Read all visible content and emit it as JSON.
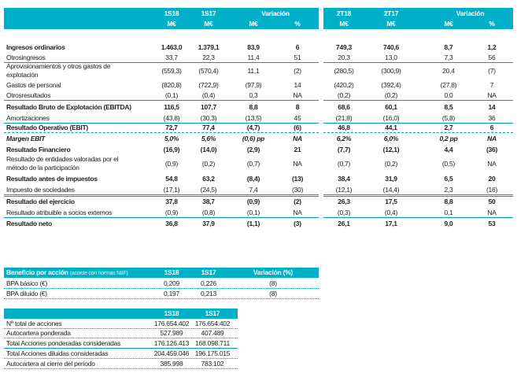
{
  "main_table": {
    "headers": {
      "left_periods": [
        "1S18",
        "1S17"
      ],
      "right_periods": [
        "2T18",
        "2T17"
      ],
      "variation": "Variación",
      "unit": "M€",
      "pct": "%"
    },
    "rows": [
      {
        "label": "Ingresos ordinarios",
        "bold": true,
        "values": [
          "1.463,0",
          "1.379,1",
          "83,9",
          "6",
          "749,3",
          "740,6",
          "8,7",
          "1,2"
        ]
      },
      {
        "label": "Otrosingresos",
        "values": [
          "33,7",
          "22,3",
          "11,4",
          "51",
          "20,3",
          "13,0",
          "7,3",
          "56"
        ],
        "line": "solid"
      },
      {
        "label": "Aprovisionamientos y otros gastos de explotación",
        "tall": true,
        "values": [
          "(559,3)",
          "(570,4)",
          "11,1",
          "(2)",
          "(280,5)",
          "(300,9)",
          "20,4",
          "(7)"
        ]
      },
      {
        "label": "Gastos de personal",
        "values": [
          "(820,8)",
          "(722,9)",
          "(97,9)",
          "14",
          "(420,2)",
          "(392,4)",
          "(27,8)",
          "7"
        ]
      },
      {
        "label": "Otrosresultados",
        "values": [
          "(0,1)",
          "(0,4)",
          "0,3",
          "NA",
          "(0,2)",
          "(0,2)",
          "0,0",
          "NA"
        ],
        "line": "solid"
      },
      {
        "label": "Resultado Bruto de Explotación (EBITDA)",
        "bold": true,
        "values": [
          "116,5",
          "107,7",
          "8,8",
          "8",
          "68,6",
          "60,1",
          "8,5",
          "14"
        ]
      },
      {
        "label": "Amortizaciones",
        "values": [
          "(43,8)",
          "(30,3)",
          "(13,5)",
          "45",
          "(21,8)",
          "(16,0)",
          "(5,8)",
          "36"
        ],
        "line": "solid"
      },
      {
        "label": "Resultado Operativo (EBIT)",
        "bold": true,
        "values": [
          "72,7",
          "77,4",
          "(4,7)",
          "(6)",
          "46,8",
          "44,1",
          "2,7",
          "6"
        ],
        "line": "dash"
      },
      {
        "label": "Margen EBIT",
        "bold": true,
        "italic": true,
        "values": [
          "5,0%",
          "5,6%",
          "(0,6) pp",
          "NA",
          "6,2%",
          "6,0%",
          "0,2 pp",
          "NA"
        ]
      },
      {
        "label": "Resultado Financiero",
        "bold": true,
        "values": [
          "(16,9)",
          "(14,0)",
          "(2,9)",
          "21",
          "(7,7)",
          "(12,1)",
          "4,4",
          "(36)"
        ]
      },
      {
        "label": "Resultado de entidades valoradas por el método de la participación",
        "tall": true,
        "values": [
          "(0,9)",
          "(0,2)",
          "(0,7)",
          "NA",
          "(0,7)",
          "(0,2)",
          "(0,5)",
          "NA"
        ]
      },
      {
        "label": "Resultado antes de impuestos",
        "bold": true,
        "values": [
          "54,8",
          "63,2",
          "(8,4)",
          "(13)",
          "38,4",
          "31,9",
          "6,5",
          "20"
        ]
      },
      {
        "label": "Impuesto de sociedades",
        "values": [
          "(17,1)",
          "(24,5)",
          "7,4",
          "(30)",
          "(12,1)",
          "(14,4)",
          "2,3",
          "(16)"
        ],
        "line": "dbl"
      },
      {
        "label": "Resultado del ejercicio",
        "bold": true,
        "values": [
          "37,8",
          "38,7",
          "(0,9)",
          "(2)",
          "26,3",
          "17,5",
          "8,8",
          "50"
        ]
      },
      {
        "label": "Resultado atribuible a socios externos",
        "values": [
          "(0,9)",
          "(0,8)",
          "(0,1)",
          "NA",
          "(0,3)",
          "(0,4)",
          "0,1",
          "NA"
        ],
        "line": "solid"
      },
      {
        "label": "Resultado neto",
        "bold": true,
        "values": [
          "36,8",
          "37,9",
          "(1,1)",
          "(3)",
          "26,1",
          "17,1",
          "9,0",
          "53"
        ]
      }
    ]
  },
  "eps_table": {
    "title": "Beneficio por acción",
    "subtitle": "(acorde con normas NIIF)",
    "headers": [
      "1S18",
      "1S17",
      "Variación (%)"
    ],
    "rows": [
      {
        "label": "BPA básico (€)",
        "values": [
          "0,209",
          "0,226",
          "(8)"
        ]
      },
      {
        "label": "BPA diluido (€)",
        "values": [
          "0,197",
          "0,213",
          "(8)"
        ]
      }
    ]
  },
  "shares_table": {
    "headers": [
      "1S18",
      "1S17"
    ],
    "rows": [
      {
        "label": "Nº total de acciones",
        "values": [
          "176.654.402",
          "176.654.402"
        ],
        "line": "dot"
      },
      {
        "label": "Autocartera ponderada",
        "values": [
          "527.989",
          "407.489"
        ],
        "line": "dot"
      },
      {
        "label": "Total Acciones ponderadas consideradas",
        "values": [
          "176.126.413",
          "168.098.711"
        ],
        "line": "solid"
      },
      {
        "label": "Total Acciones diluidas consideradas",
        "values": [
          "204.459.046",
          "196.175.015"
        ],
        "line": "dot"
      },
      {
        "label": "Autocartera al cierre del periodo",
        "values": [
          "385.998",
          "783.102"
        ],
        "line": "dot"
      }
    ]
  },
  "colors": {
    "accent": "#00b0c8"
  }
}
